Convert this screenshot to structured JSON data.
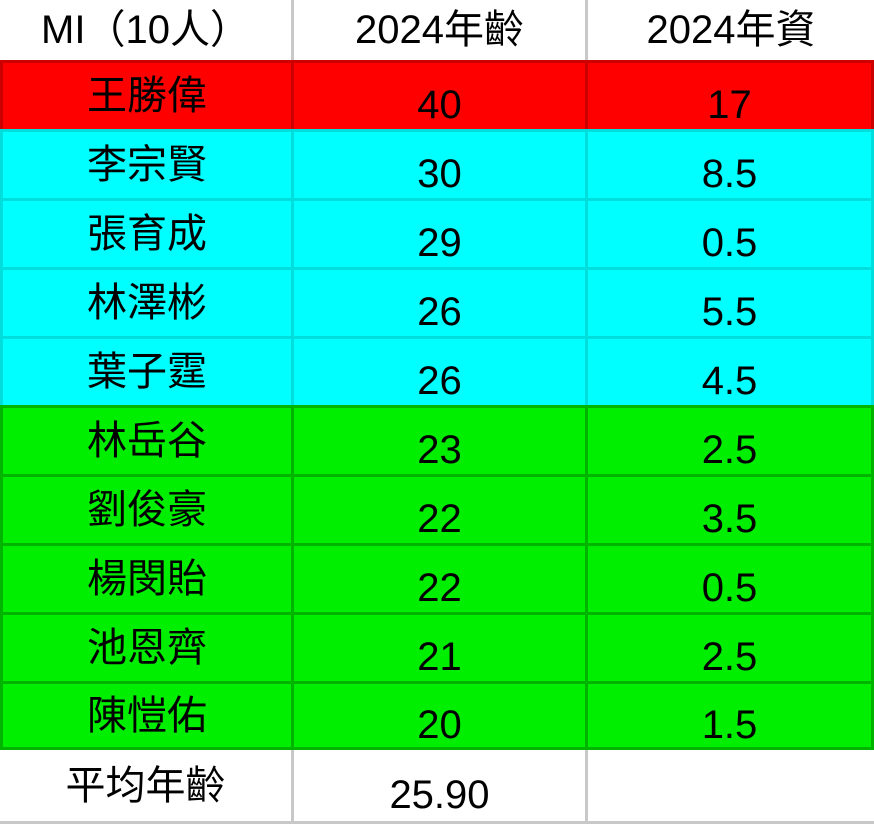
{
  "header": {
    "team_label": "MI（10人）",
    "age_label": "2024年齡",
    "tenure_label": "2024年資"
  },
  "players": [
    {
      "name": "王勝偉",
      "age": "40",
      "tenure": "17",
      "tier": "red"
    },
    {
      "name": "李宗賢",
      "age": "30",
      "tenure": "8.5",
      "tier": "cyan"
    },
    {
      "name": "張育成",
      "age": "29",
      "tenure": "0.5",
      "tier": "cyan"
    },
    {
      "name": "林澤彬",
      "age": "26",
      "tenure": "5.5",
      "tier": "cyan"
    },
    {
      "name": "葉子霆",
      "age": "26",
      "tenure": "4.5",
      "tier": "cyan"
    },
    {
      "name": "林岳谷",
      "age": "23",
      "tenure": "2.5",
      "tier": "green"
    },
    {
      "name": "劉俊豪",
      "age": "22",
      "tenure": "3.5",
      "tier": "green"
    },
    {
      "name": "楊閔貽",
      "age": "22",
      "tenure": "0.5",
      "tier": "green"
    },
    {
      "name": "池恩齊",
      "age": "21",
      "tenure": "2.5",
      "tier": "green"
    },
    {
      "name": "陳愷佑",
      "age": "20",
      "tenure": "1.5",
      "tier": "green"
    }
  ],
  "footer": {
    "label": "平均年齡",
    "average_age": "25.90",
    "empty": ""
  },
  "colors": {
    "red": "#ff0000",
    "cyan": "#00ffff",
    "green": "#00ee00",
    "white": "#ffffff",
    "red_border": "#cc0000",
    "cyan_border": "#00dddd",
    "green_border": "#00b400",
    "gray_border": "#c8c8c8",
    "text": "#000000"
  },
  "chart_data": {
    "type": "table",
    "title": "MI（10人）",
    "columns": [
      "MI（10人）",
      "2024年齡",
      "2024年資"
    ],
    "rows": [
      [
        "王勝偉",
        40,
        17
      ],
      [
        "李宗賢",
        30,
        8.5
      ],
      [
        "張育成",
        29,
        0.5
      ],
      [
        "林澤彬",
        26,
        5.5
      ],
      [
        "葉子霆",
        26,
        4.5
      ],
      [
        "林岳谷",
        23,
        2.5
      ],
      [
        "劉俊豪",
        22,
        3.5
      ],
      [
        "楊閔貽",
        22,
        0.5
      ],
      [
        "池恩齊",
        21,
        2.5
      ],
      [
        "陳愷佑",
        20,
        1.5
      ]
    ],
    "footer_row": [
      "平均年齡",
      25.9,
      null
    ],
    "row_groups": {
      "red": [
        0
      ],
      "cyan": [
        1,
        2,
        3,
        4
      ],
      "green": [
        5,
        6,
        7,
        8,
        9
      ]
    }
  }
}
